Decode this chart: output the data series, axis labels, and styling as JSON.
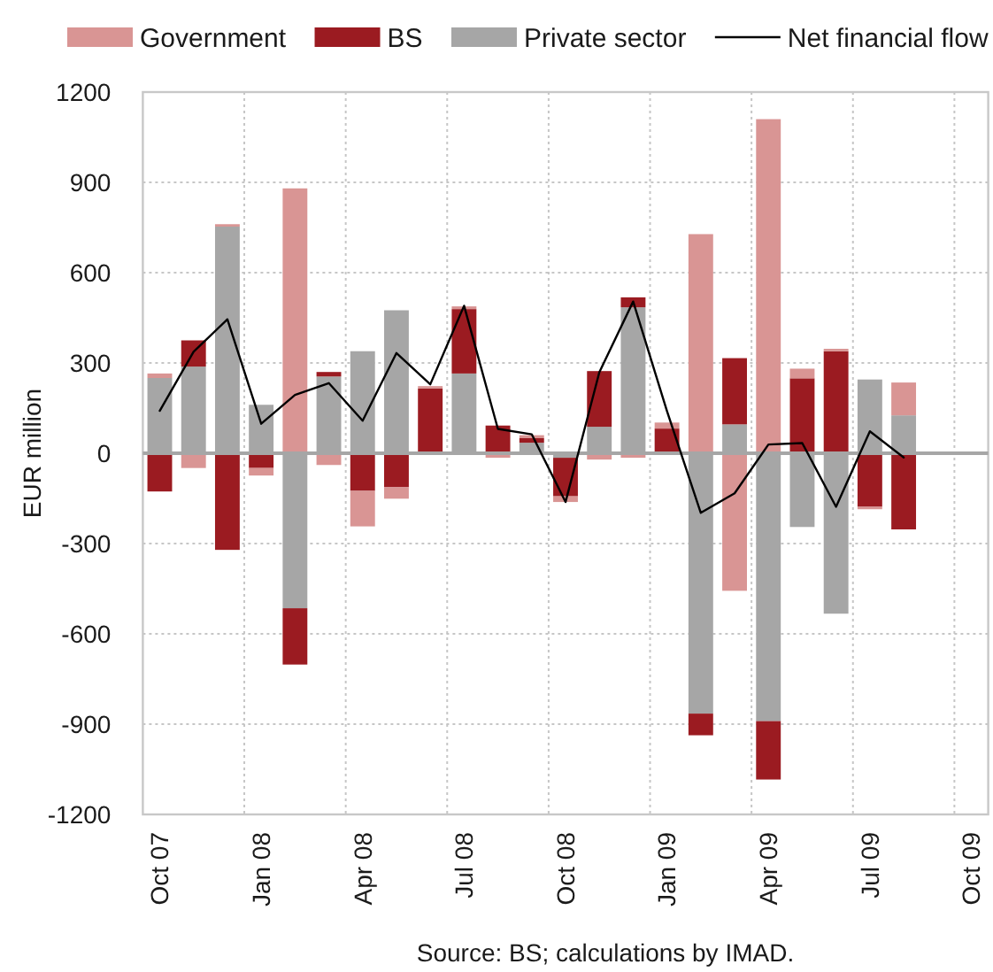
{
  "chart_data": {
    "type": "bar",
    "stacked": true,
    "ylabel": "EUR million",
    "categories": [
      "Oct 07",
      null,
      null,
      "Jan 08",
      null,
      null,
      "Apr 08",
      null,
      null,
      "Jul 08",
      null,
      null,
      "Oct 08",
      null,
      null,
      "Jan 09",
      null,
      null,
      "Apr 09",
      null,
      null,
      "Jul 09",
      null,
      null,
      "Oct 09"
    ],
    "series": [
      {
        "name": "Private sector",
        "color": "#a6a6a6",
        "values": [
          250,
          288,
          753,
          161,
          -515,
          255,
          339,
          475,
          0,
          265,
          0,
          35,
          -15,
          88,
          485,
          0,
          -865,
          96,
          -890,
          -245,
          -533,
          245,
          126,
          null,
          null
        ]
      },
      {
        "name": "BS",
        "color": "#9b1b21",
        "values": [
          -127,
          87,
          -321,
          -49,
          -187,
          15,
          -125,
          -113,
          215,
          214,
          92,
          15,
          -128,
          185,
          33,
          82,
          -72,
          220,
          -194,
          249,
          339,
          -178,
          -253,
          null,
          null
        ]
      },
      {
        "name": "Government",
        "color": "#d99594",
        "values": [
          15,
          -49,
          8,
          -25,
          880,
          -39,
          -118,
          -38,
          8,
          9,
          -15,
          10,
          -19,
          -21,
          -15,
          20,
          728,
          -457,
          1110,
          32,
          8,
          -8,
          109,
          null,
          null
        ]
      },
      {
        "name": "Net financial flow",
        "type": "line",
        "color": "#000000",
        "values": [
          141,
          337,
          445,
          98,
          194,
          233,
          108,
          333,
          229,
          490,
          81,
          63,
          -162,
          269,
          504,
          140,
          -198,
          -133,
          29,
          34,
          -178,
          73,
          -14,
          null,
          null
        ]
      }
    ],
    "ylim": [
      -1200,
      1200
    ],
    "yticks": [
      -1200,
      -900,
      -600,
      -300,
      0,
      300,
      600,
      900,
      1200
    ],
    "grid": true,
    "legend": "top",
    "annotations": [
      "Source: BS; calculations by IMAD."
    ]
  }
}
